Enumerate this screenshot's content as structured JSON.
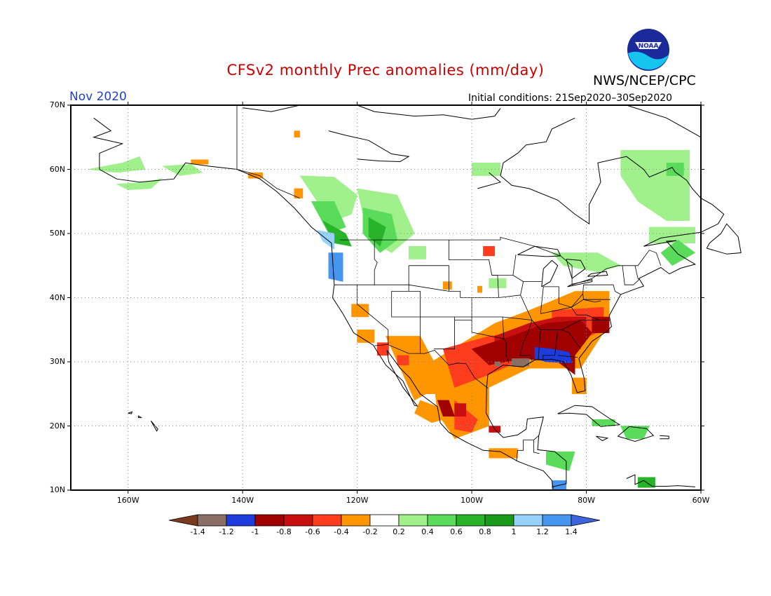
{
  "header": {
    "title": "CFSv2 monthly Prec anomalies (mm/day)",
    "month": "Nov 2020",
    "initial_conditions": "Initial conditions: 21Sep2020–30Sep2020",
    "agency": "NWS/NCEP/CPC",
    "logo_text": "NOAA"
  },
  "colors": {
    "title": "#cc0000",
    "month": "#1f3fd0",
    "neg_14": "#7a3a1e",
    "neg_12": "#8a6e64",
    "neg_10": "#1e3cdc",
    "neg_08": "#a00000",
    "neg_06": "#c80f0f",
    "neg_04": "#ff3c1e",
    "neg_02": "#ff9600",
    "neutral": "#ffffff",
    "pos_02": "#a0f08c",
    "pos_04": "#5adc5a",
    "pos_06": "#28b428",
    "pos_08": "#1a9a1a",
    "pos_10": "#96d2fa",
    "pos_12": "#4696f0",
    "pos_14": "#3c64dc"
  },
  "map": {
    "lat_ticks": [
      "70N",
      "60N",
      "50N",
      "40N",
      "30N",
      "20N",
      "10N"
    ],
    "lon_ticks": [
      "160W",
      "140W",
      "120W",
      "100W",
      "80W",
      "60W"
    ],
    "lat_range": [
      10,
      70
    ],
    "lon_range": [
      -170,
      -60
    ],
    "grid": "dotted"
  },
  "colorbar": {
    "labels": [
      "-1.4",
      "-1.2",
      "-1",
      "-0.8",
      "-0.6",
      "-0.4",
      "-0.2",
      "0.2",
      "0.4",
      "0.6",
      "0.8",
      "1",
      "1.2",
      "1.4"
    ]
  }
}
